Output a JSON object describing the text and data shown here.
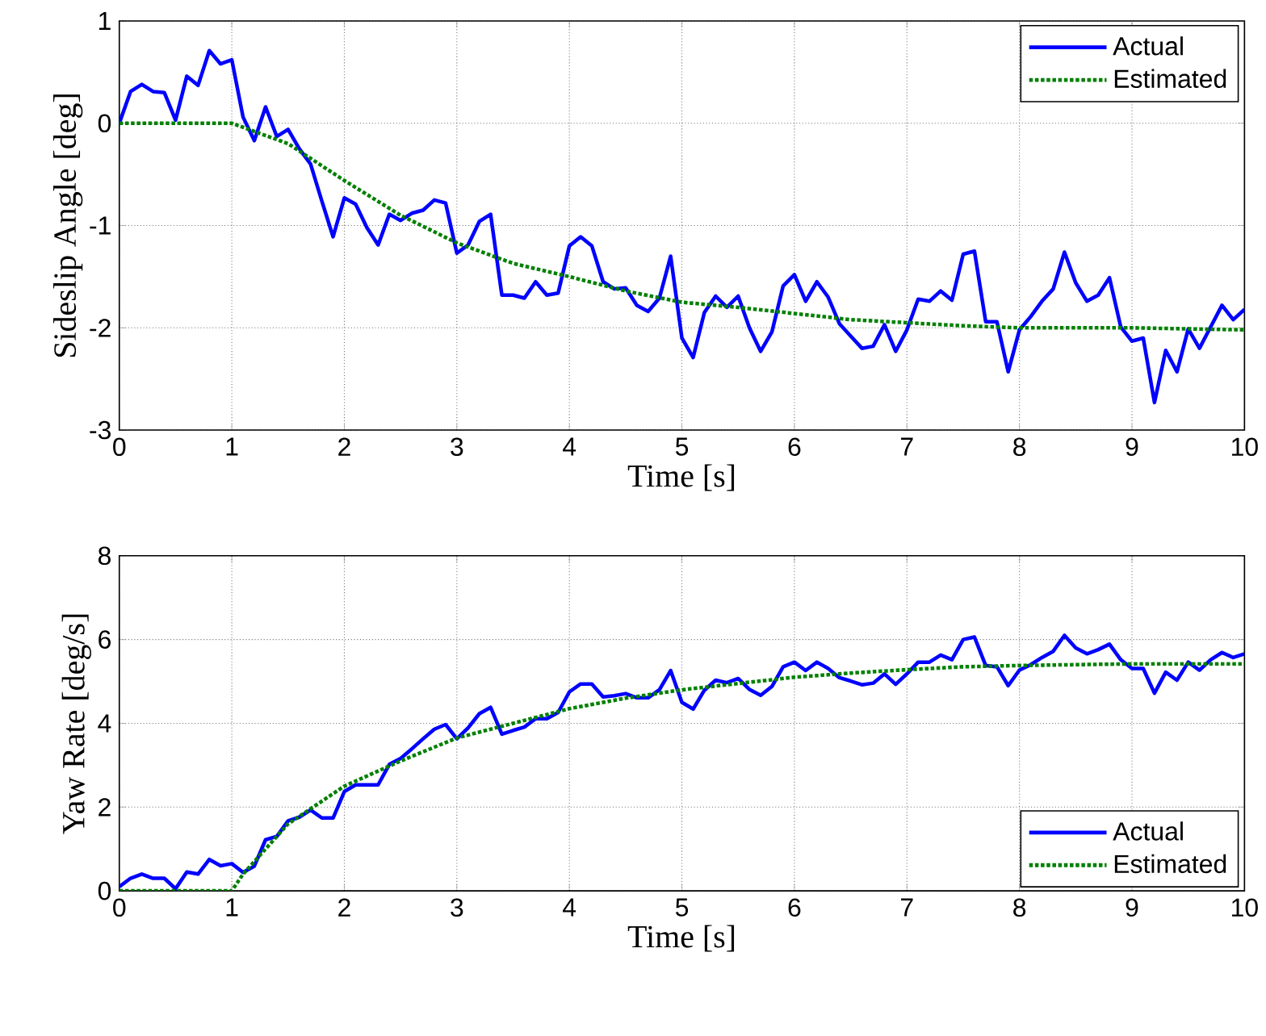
{
  "chart_data": [
    {
      "type": "line",
      "xlabel": "Time [s]",
      "ylabel": "Sideslip Angle [deg]",
      "xlim": [
        0,
        10
      ],
      "xticks": [
        0,
        1,
        2,
        3,
        4,
        5,
        6,
        7,
        8,
        9,
        10
      ],
      "ylim": [
        -3,
        1
      ],
      "yticks": [
        -3,
        -2,
        -1,
        0,
        1
      ],
      "grid": true,
      "legend": "top right",
      "series": [
        {
          "name": "Actual",
          "color": "#0000ff",
          "line_style": "solid",
          "x": [
            0,
            0.1,
            0.2,
            0.3,
            0.4,
            0.5,
            0.6,
            0.7,
            0.8,
            0.9,
            1,
            1.1,
            1.2,
            1.3,
            1.4,
            1.5,
            1.6,
            1.7,
            1.8,
            1.9,
            2,
            2.1,
            2.2,
            2.3,
            2.4,
            2.5,
            2.6,
            2.7,
            2.8,
            2.9,
            3,
            3.1,
            3.2,
            3.3,
            3.4,
            3.5,
            3.6,
            3.7,
            3.8,
            3.9,
            4,
            4.1,
            4.2,
            4.3,
            4.4,
            4.5,
            4.6,
            4.7,
            4.8,
            4.9,
            5,
            5.1,
            5.2,
            5.3,
            5.4,
            5.5,
            5.6,
            5.7,
            5.8,
            5.9,
            6,
            6.1,
            6.2,
            6.3,
            6.4,
            6.5,
            6.6,
            6.7,
            6.8,
            6.9,
            7,
            7.1,
            7.2,
            7.3,
            7.4,
            7.5,
            7.6,
            7.7,
            7.8,
            7.9,
            8,
            8.1,
            8.2,
            8.3,
            8.4,
            8.5,
            8.6,
            8.7,
            8.8,
            8.9,
            9,
            9.1,
            9.2,
            9.3,
            9.4,
            9.5,
            9.6,
            9.7,
            9.8,
            9.9,
            10
          ],
          "values": [
            0,
            0.31,
            0.38,
            0.31,
            0.3,
            0.03,
            0.46,
            0.37,
            0.71,
            0.58,
            0.62,
            0.06,
            -0.17,
            0.16,
            -0.13,
            -0.06,
            -0.25,
            -0.4,
            -0.76,
            -1.11,
            -0.73,
            -0.79,
            -1.02,
            -1.19,
            -0.89,
            -0.95,
            -0.88,
            -0.85,
            -0.75,
            -0.78,
            -1.27,
            -1.19,
            -0.96,
            -0.89,
            -1.68,
            -1.68,
            -1.71,
            -1.55,
            -1.68,
            -1.66,
            -1.2,
            -1.11,
            -1.2,
            -1.55,
            -1.62,
            -1.61,
            -1.78,
            -1.84,
            -1.71,
            -1.3,
            -2.1,
            -2.29,
            -1.85,
            -1.69,
            -1.8,
            -1.69,
            -2.0,
            -2.23,
            -2.04,
            -1.59,
            -1.48,
            -1.74,
            -1.55,
            -1.7,
            -1.96,
            -2.08,
            -2.2,
            -2.18,
            -1.97,
            -2.23,
            -2.02,
            -1.72,
            -1.74,
            -1.64,
            -1.73,
            -1.28,
            -1.25,
            -1.94,
            -1.94,
            -2.43,
            -2.02,
            -1.89,
            -1.74,
            -1.62,
            -1.26,
            -1.56,
            -1.74,
            -1.68,
            -1.51,
            -1.99,
            -2.13,
            -2.1,
            -2.73,
            -2.22,
            -2.43,
            -2.01,
            -2.2,
            -1.99,
            -1.78,
            -1.92,
            -1.82
          ]
        },
        {
          "name": "Estimated",
          "color": "#008000",
          "line_style": "dotted",
          "x": [
            0,
            1,
            1.5,
            2,
            2.5,
            3,
            3.5,
            4,
            4.5,
            5,
            5.5,
            6,
            6.5,
            7,
            7.5,
            8,
            9,
            10
          ],
          "values": [
            0,
            0,
            -0.2,
            -0.56,
            -0.9,
            -1.17,
            -1.37,
            -1.5,
            -1.64,
            -1.75,
            -1.8,
            -1.86,
            -1.92,
            -1.95,
            -1.98,
            -2.0,
            -2.0,
            -2.02
          ]
        }
      ]
    },
    {
      "type": "line",
      "xlabel": "Time [s]",
      "ylabel": "Yaw Rate [deg/s]",
      "xlim": [
        0,
        10
      ],
      "xticks": [
        0,
        1,
        2,
        3,
        4,
        5,
        6,
        7,
        8,
        9,
        10
      ],
      "ylim": [
        0,
        8
      ],
      "yticks": [
        0,
        2,
        4,
        6,
        8
      ],
      "grid": true,
      "legend": "bottom right",
      "series": [
        {
          "name": "Actual",
          "color": "#0000ff",
          "line_style": "solid",
          "x": [
            0,
            0.1,
            0.2,
            0.3,
            0.4,
            0.5,
            0.6,
            0.7,
            0.8,
            0.9,
            1,
            1.1,
            1.2,
            1.3,
            1.4,
            1.5,
            1.6,
            1.7,
            1.8,
            1.9,
            2,
            2.1,
            2.2,
            2.3,
            2.4,
            2.5,
            2.6,
            2.7,
            2.8,
            2.9,
            3,
            3.1,
            3.2,
            3.3,
            3.4,
            3.5,
            3.6,
            3.7,
            3.8,
            3.9,
            4,
            4.1,
            4.2,
            4.3,
            4.4,
            4.5,
            4.6,
            4.7,
            4.8,
            4.9,
            5,
            5.1,
            5.2,
            5.3,
            5.4,
            5.5,
            5.6,
            5.7,
            5.8,
            5.9,
            6,
            6.1,
            6.2,
            6.3,
            6.4,
            6.5,
            6.6,
            6.7,
            6.8,
            6.9,
            7,
            7.1,
            7.2,
            7.3,
            7.4,
            7.5,
            7.6,
            7.7,
            7.8,
            7.9,
            8,
            8.1,
            8.2,
            8.3,
            8.4,
            8.5,
            8.6,
            8.7,
            8.8,
            8.9,
            9,
            9.1,
            9.2,
            9.3,
            9.4,
            9.5,
            9.6,
            9.7,
            9.8,
            9.9,
            10
          ],
          "values": [
            0.1,
            0.3,
            0.4,
            0.3,
            0.3,
            0.05,
            0.45,
            0.4,
            0.75,
            0.6,
            0.65,
            0.44,
            0.59,
            1.22,
            1.3,
            1.67,
            1.76,
            1.93,
            1.74,
            1.74,
            2.37,
            2.53,
            2.53,
            2.53,
            3.02,
            3.16,
            3.39,
            3.63,
            3.86,
            3.97,
            3.63,
            3.89,
            4.23,
            4.38,
            3.74,
            3.83,
            3.91,
            4.11,
            4.11,
            4.26,
            4.75,
            4.94,
            4.94,
            4.63,
            4.66,
            4.71,
            4.61,
            4.61,
            4.8,
            5.26,
            4.5,
            4.34,
            4.79,
            5.03,
            4.97,
            5.07,
            4.81,
            4.67,
            4.88,
            5.35,
            5.46,
            5.26,
            5.46,
            5.31,
            5.09,
            5.01,
            4.92,
            4.96,
            5.18,
            4.93,
            5.18,
            5.46,
            5.46,
            5.63,
            5.52,
            6.0,
            6.06,
            5.38,
            5.35,
            4.9,
            5.27,
            5.4,
            5.57,
            5.72,
            6.1,
            5.8,
            5.66,
            5.76,
            5.89,
            5.52,
            5.31,
            5.31,
            4.72,
            5.22,
            5.03,
            5.46,
            5.27,
            5.52,
            5.69,
            5.57,
            5.66
          ]
        },
        {
          "name": "Estimated",
          "color": "#008000",
          "line_style": "dotted",
          "x": [
            0,
            1,
            1.1,
            1.5,
            2,
            2.5,
            3,
            3.5,
            4,
            4.5,
            5,
            5.5,
            6,
            6.5,
            7,
            7.5,
            8,
            9,
            10
          ],
          "values": [
            0,
            0,
            0.4,
            1.6,
            2.5,
            3.1,
            3.65,
            4.0,
            4.35,
            4.6,
            4.8,
            4.95,
            5.1,
            5.2,
            5.28,
            5.35,
            5.38,
            5.42,
            5.42
          ]
        }
      ]
    }
  ]
}
